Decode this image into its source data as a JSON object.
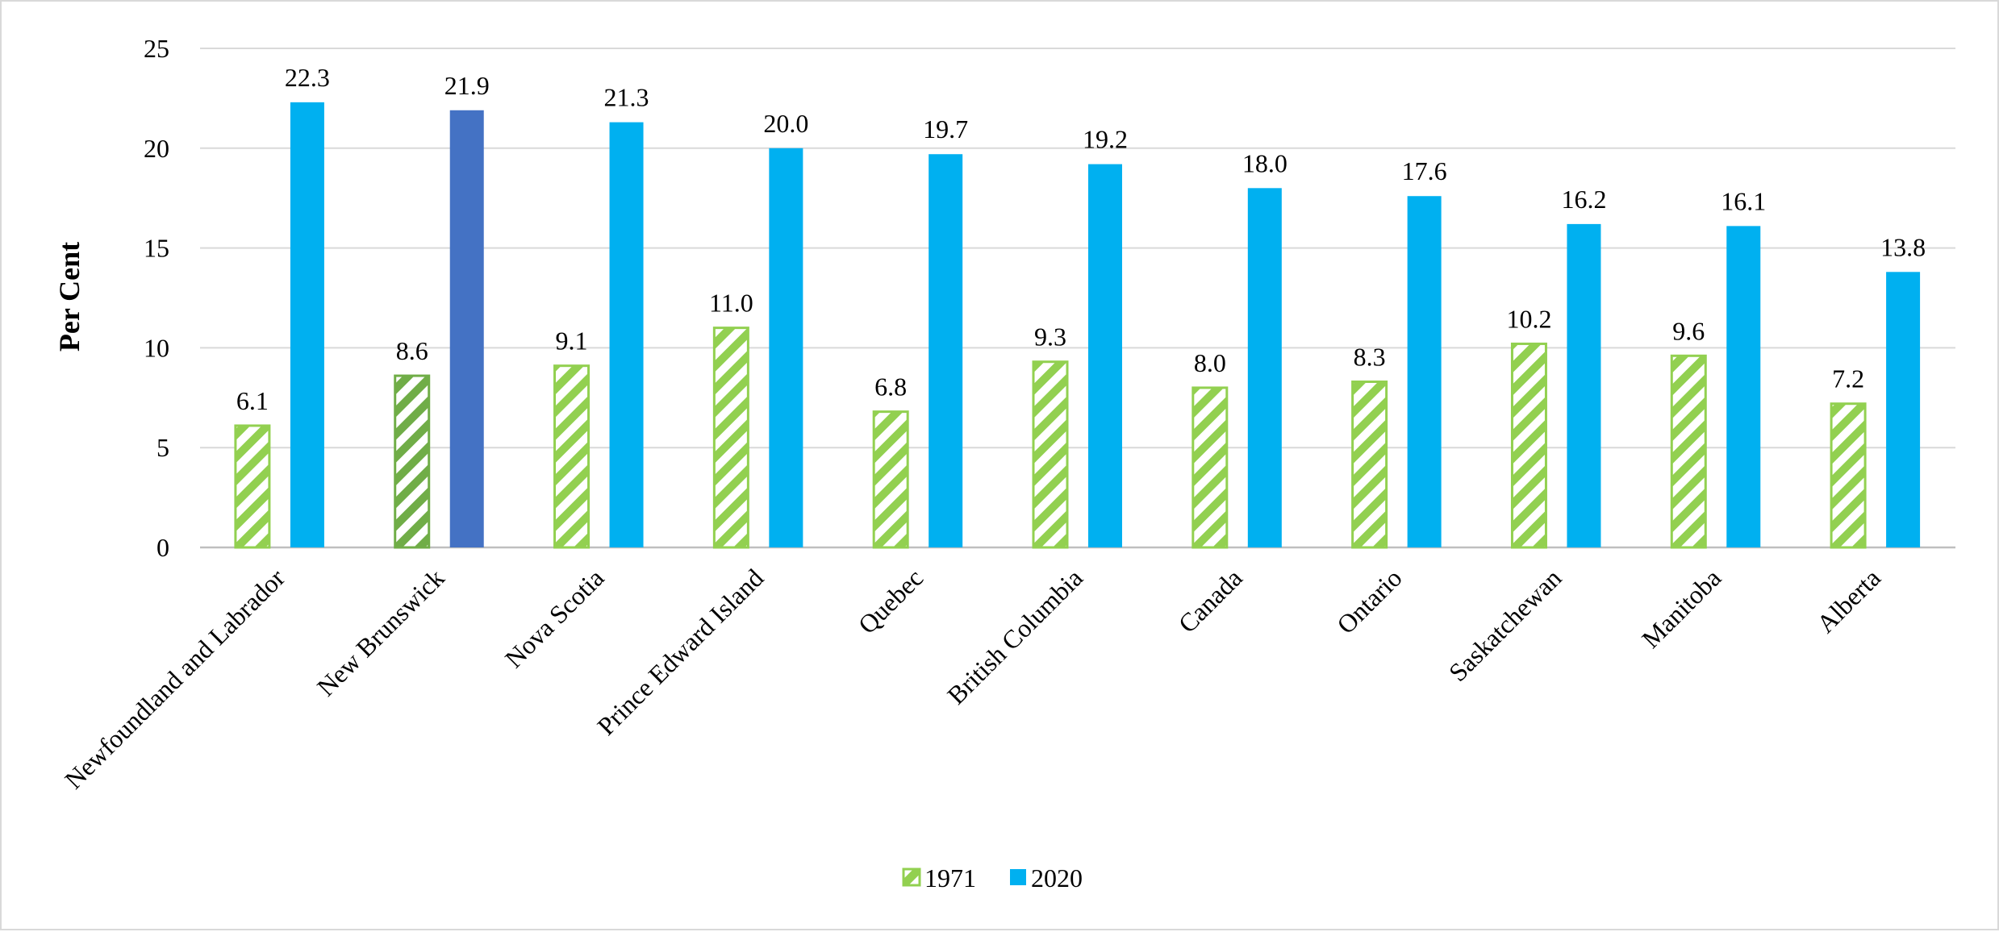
{
  "chart_data": {
    "type": "bar",
    "title": "",
    "xlabel": "",
    "ylabel": "Per Cent",
    "ylim": [
      0,
      25
    ],
    "yticks": [
      0,
      5,
      10,
      15,
      20,
      25
    ],
    "grid": true,
    "legend_position": "bottom",
    "categories": [
      "Newfoundland and Labrador",
      "New Brunswick",
      "Nova Scotia",
      "Prince Edward Island",
      "Quebec",
      "British Columbia",
      "Canada",
      "Ontario",
      "Saskatchewan",
      "Manitoba",
      "Alberta"
    ],
    "series": [
      {
        "name": "1971",
        "values": [
          6.1,
          8.6,
          9.1,
          11.0,
          6.8,
          9.3,
          8.0,
          8.3,
          10.2,
          9.6,
          7.2
        ],
        "labels": [
          "6.1",
          "8.6",
          "9.1",
          "11.0",
          "6.8",
          "9.3",
          "8.0",
          "8.3",
          "10.2",
          "9.6",
          "7.2"
        ],
        "color": "#92d050",
        "highlight_color": "#70ad47",
        "pattern": "diagonal-stripes"
      },
      {
        "name": "2020",
        "values": [
          22.3,
          21.9,
          21.3,
          20.0,
          19.7,
          19.2,
          18.0,
          17.6,
          16.2,
          16.1,
          13.8
        ],
        "labels": [
          "22.3",
          "21.9",
          "21.3",
          "20.0",
          "19.7",
          "19.2",
          "18.0",
          "17.6",
          "16.2",
          "16.1",
          "13.8"
        ],
        "color": "#00b0f0",
        "highlight_color": "#4472c4",
        "pattern": "solid"
      }
    ],
    "highlighted_category": "New Brunswick"
  }
}
